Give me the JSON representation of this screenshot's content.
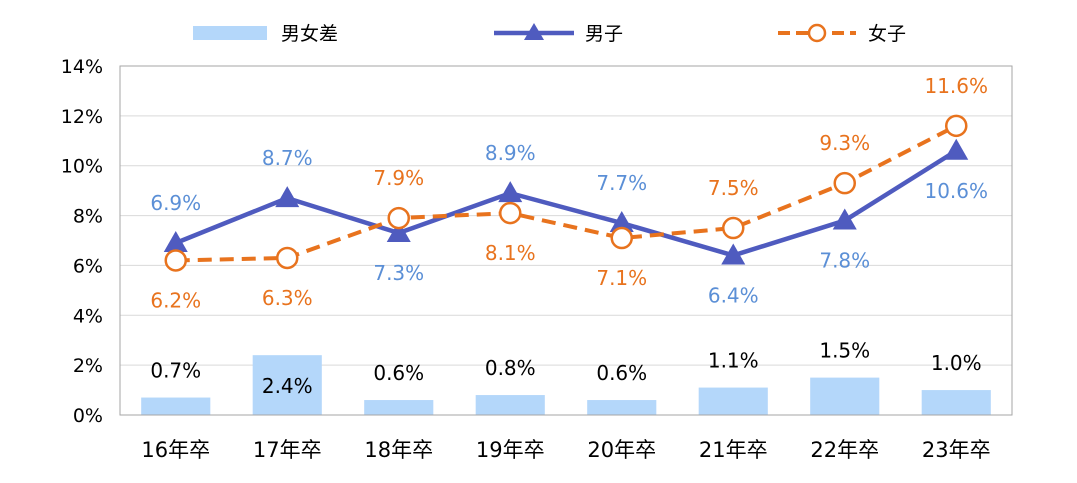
{
  "chart_data": {
    "type": "bar+line",
    "categories": [
      "16年卒",
      "17年卒",
      "18年卒",
      "19年卒",
      "20年卒",
      "21年卒",
      "22年卒",
      "23年卒"
    ],
    "series": [
      {
        "name": "男女差",
        "kind": "bar",
        "color": "#b4d7fa",
        "values": [
          0.7,
          2.4,
          0.6,
          0.8,
          0.6,
          1.1,
          1.5,
          1.0
        ],
        "labels": [
          "0.7%",
          "2.4%",
          "0.6%",
          "0.8%",
          "0.6%",
          "1.1%",
          "1.5%",
          "1.0%"
        ]
      },
      {
        "name": "男子",
        "kind": "line",
        "marker": "triangle",
        "color": "#4f5bbf",
        "label_color": "#5b8fd6",
        "values": [
          6.9,
          8.7,
          7.3,
          8.9,
          7.7,
          6.4,
          7.8,
          10.6
        ],
        "labels": [
          "6.9%",
          "8.7%",
          "7.3%",
          "8.9%",
          "7.7%",
          "6.4%",
          "7.8%",
          "10.6%"
        ]
      },
      {
        "name": "女子",
        "kind": "line",
        "dashed": true,
        "marker": "open-circle",
        "color": "#e8731e",
        "values": [
          6.2,
          6.3,
          7.9,
          8.1,
          7.1,
          7.5,
          9.3,
          11.6
        ],
        "labels": [
          "6.2%",
          "6.3%",
          "7.9%",
          "8.1%",
          "7.1%",
          "7.5%",
          "9.3%",
          "11.6%"
        ]
      }
    ],
    "y_ticks": [
      "0%",
      "2%",
      "4%",
      "6%",
      "8%",
      "10%",
      "12%",
      "14%"
    ],
    "ylim": [
      0,
      14
    ],
    "grid": true,
    "legend": "top"
  }
}
